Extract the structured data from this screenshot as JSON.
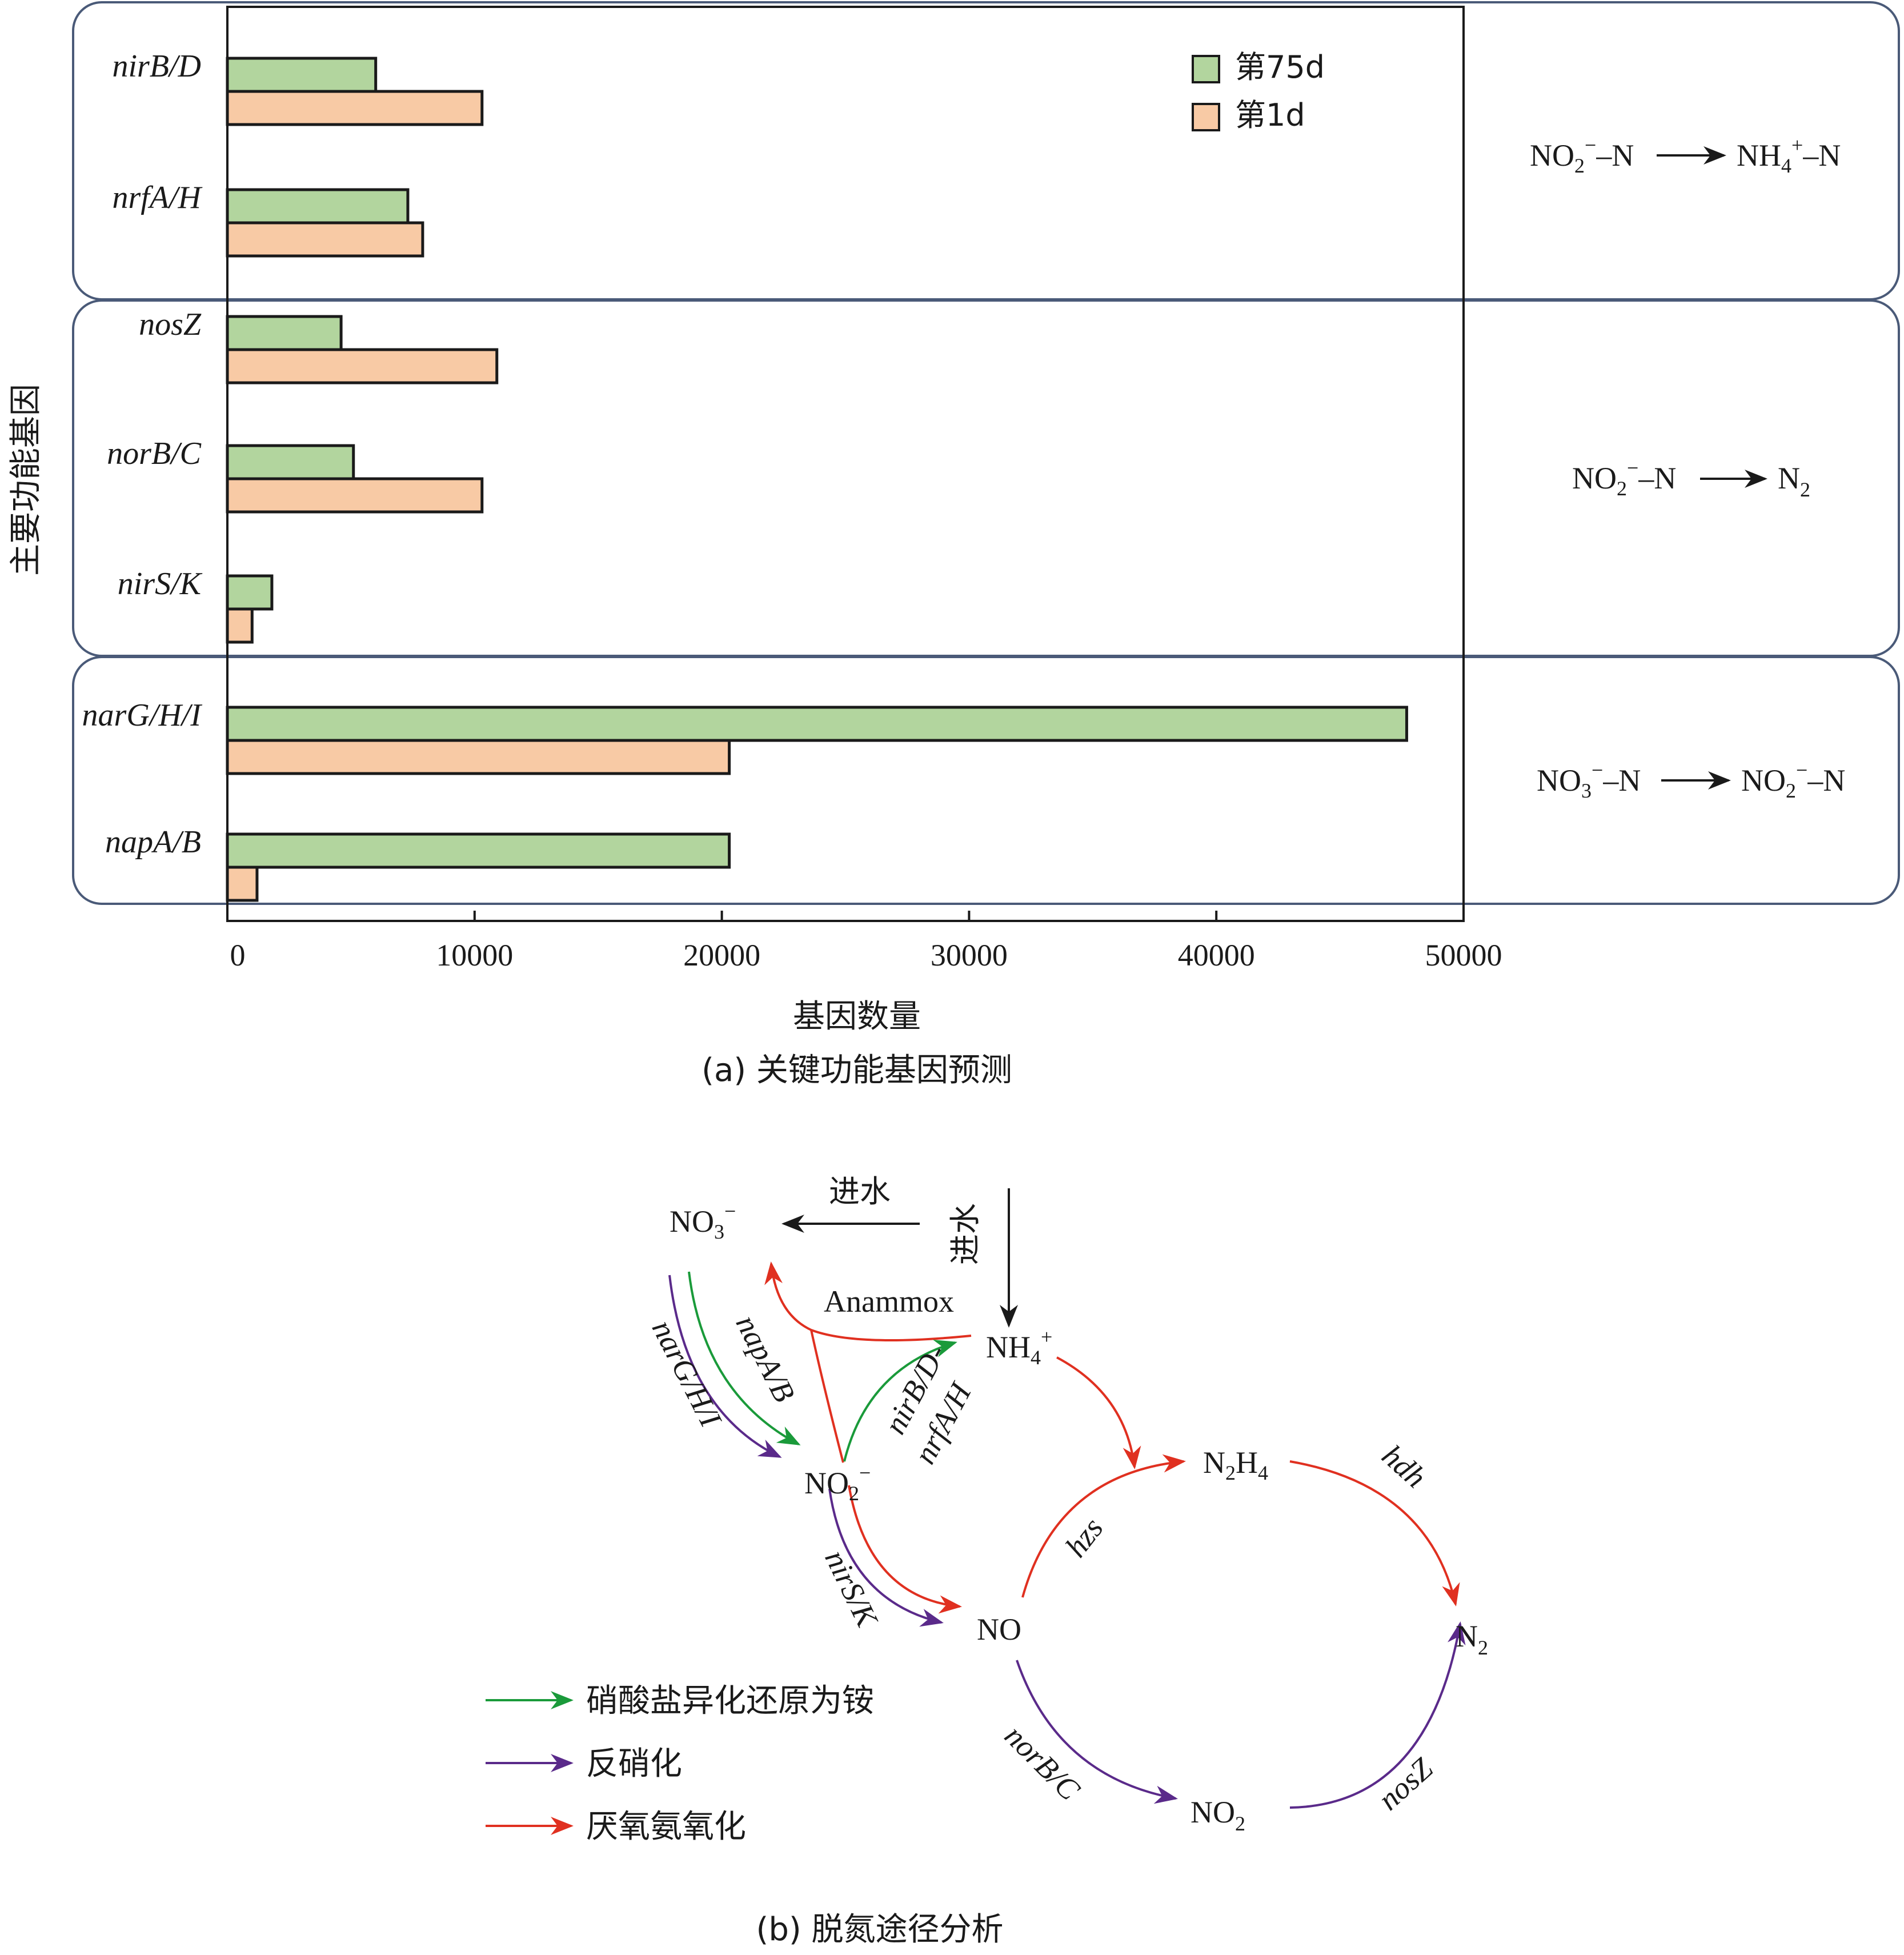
{
  "chart_data": {
    "type": "bar",
    "orientation": "horizontal",
    "title": "(a) 关键功能基因预测",
    "xlabel": "基因数量",
    "ylabel": "主要功能基因",
    "xlim": [
      0,
      50000
    ],
    "xticks": [
      0,
      10000,
      20000,
      30000,
      40000,
      50000
    ],
    "xtick_labels": [
      "0",
      "10000",
      "20000",
      "30000",
      "40000",
      "50000"
    ],
    "legend_position": "top-right",
    "categories": [
      "nirB/D",
      "nrfA/H",
      "nosZ",
      "norB/C",
      "nirS/K",
      "narG/H/I",
      "napA/B"
    ],
    "series": [
      {
        "name": "第75d",
        "color": "#b2d59e",
        "values": [
          6000,
          7300,
          4600,
          5100,
          1800,
          47700,
          20300
        ]
      },
      {
        "name": "第1d",
        "color": "#f8caa5",
        "values": [
          10300,
          7900,
          10900,
          10300,
          1000,
          20300,
          1200
        ]
      }
    ],
    "groups": [
      {
        "label": "NO₂⁻–N ⟶ NH₄⁺–N",
        "genes": [
          "nirB/D",
          "nrfA/H"
        ]
      },
      {
        "label": "NO₂⁻–N ⟶ N₂",
        "genes": [
          "nosZ",
          "norB/C",
          "nirS/K"
        ]
      },
      {
        "label": "NO₃⁻–N ⟶ NO₂⁻–N",
        "genes": [
          "narG/H/I",
          "napA/B"
        ]
      }
    ]
  },
  "pathway": {
    "caption": "(b) 脱氮途径分析",
    "influent_label": "进水",
    "anammox_label": "Anammox",
    "nodes": {
      "no3": "NO₃⁻",
      "nh4": "NH₄⁺",
      "no2m": "NO₂⁻",
      "no": "NO",
      "n2h4": "N₂H₄",
      "n2": "N₂",
      "no2": "NO₂"
    },
    "genes": {
      "narghi": "narG/H/I",
      "napab": "napA/B",
      "nirbd": "nirB/D-",
      "nrfah": "nrfA/H",
      "nirsk": "nirS/K",
      "hzs": "hzs",
      "hdh": "hdh",
      "norbc": "norB/C",
      "nosz": "nosZ"
    },
    "legend": [
      {
        "label": "硝酸盐异化还原为铵",
        "color": "#1a9a3a"
      },
      {
        "label": "反硝化",
        "color": "#5a2a8a"
      },
      {
        "label": "厌氧氨氧化",
        "color": "#e03020"
      }
    ]
  }
}
